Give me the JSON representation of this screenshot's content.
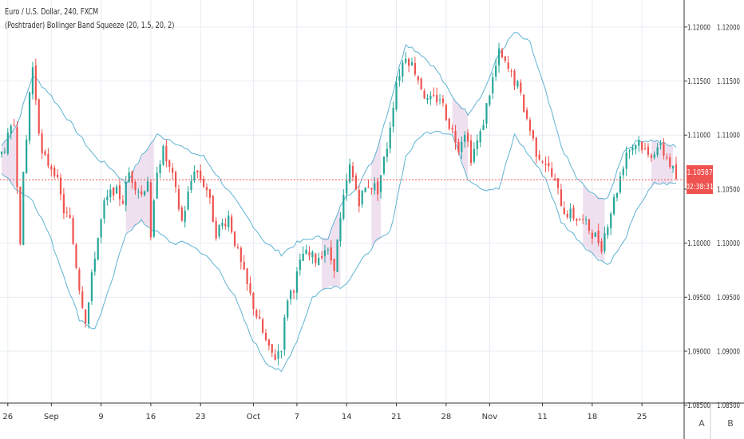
{
  "legend": {
    "symbol": "Euro / U.S. Dollar, 240, FXCM",
    "indicator": "(Poshtrader) Bollinger Band Squeeze (20, 1.5, 20, 2)"
  },
  "price_axis": {
    "labels": [
      "1.12000",
      "1.11500",
      "1.11000",
      "1.10500",
      "1.10000",
      "1.09500",
      "1.09000",
      "1.08500"
    ],
    "current_price": "1.10587",
    "countdown": "02:38:31"
  },
  "time_axis": {
    "labels": [
      "26",
      "Sep",
      "9",
      "16",
      "23",
      "Oct",
      "7",
      "14",
      "21",
      "28",
      "Nov",
      "11",
      "18",
      "25"
    ]
  },
  "buttons": {
    "auto": "A",
    "base": "B"
  },
  "colors": {
    "up": "#26a69a",
    "down": "#ef5350",
    "band": "#5fb3d3",
    "squeeze": "#ead6ea",
    "grid": "#e6ecf2",
    "price_line": "#ef5350"
  },
  "chart_data": {
    "type": "candlestick",
    "title": "Euro / U.S. Dollar, 240, FXCM",
    "indicator": "(Poshtrader) Bollinger Band Squeeze (20, 1.5, 20, 2)",
    "ylim": [
      1.0852,
      1.1225
    ],
    "y_ticks": [
      1.12,
      1.115,
      1.11,
      1.105,
      1.1,
      1.095,
      1.09,
      1.085
    ],
    "x_ticks": [
      "26",
      "Sep",
      "9",
      "16",
      "23",
      "Oct",
      "7",
      "14",
      "21",
      "28",
      "Nov",
      "11",
      "18",
      "25"
    ],
    "last_price": 1.10587,
    "price_path": [
      [
        0,
        1.1083
      ],
      [
        4,
        1.111
      ],
      [
        6,
        1.1005
      ],
      [
        7,
        1.106
      ],
      [
        8,
        1.1095
      ],
      [
        9,
        1.114
      ],
      [
        10,
        1.1162
      ],
      [
        13,
        1.108
      ],
      [
        17,
        1.1068
      ],
      [
        20,
        1.103
      ],
      [
        22,
        1.102
      ],
      [
        25,
        1.096
      ],
      [
        27,
        1.093
      ],
      [
        28,
        1.0945
      ],
      [
        30,
        1.099
      ],
      [
        33,
        1.1035
      ],
      [
        36,
        1.105
      ],
      [
        39,
        1.104
      ],
      [
        41,
        1.1065
      ],
      [
        45,
        1.1045
      ],
      [
        47,
        1.106
      ],
      [
        48,
        1.1
      ],
      [
        50,
        1.107
      ],
      [
        52,
        1.1085
      ],
      [
        55,
        1.106
      ],
      [
        58,
        1.102
      ],
      [
        62,
        1.107
      ],
      [
        66,
        1.105
      ],
      [
        69,
        1.101
      ],
      [
        73,
        1.1025
      ],
      [
        76,
        1.099
      ],
      [
        79,
        1.096
      ],
      [
        83,
        1.0925
      ],
      [
        86,
        1.09
      ],
      [
        88,
        1.0895
      ],
      [
        90,
        1.0905
      ],
      [
        92,
        1.095
      ],
      [
        94,
        1.096
      ],
      [
        97,
        1.099
      ],
      [
        101,
        1.0985
      ],
      [
        104,
        1.0995
      ],
      [
        107,
        1.098
      ],
      [
        110,
        1.104
      ],
      [
        112,
        1.107
      ],
      [
        115,
        1.104
      ],
      [
        118,
        1.1055
      ],
      [
        121,
        1.105
      ],
      [
        124,
        1.109
      ],
      [
        127,
        1.115
      ],
      [
        130,
        1.1175
      ],
      [
        133,
        1.116
      ],
      [
        137,
        1.113
      ],
      [
        141,
        1.1135
      ],
      [
        144,
        1.111
      ],
      [
        147,
        1.109
      ],
      [
        149,
        1.1105
      ],
      [
        151,
        1.108
      ],
      [
        154,
        1.11
      ],
      [
        157,
        1.114
      ],
      [
        160,
        1.1175
      ],
      [
        163,
        1.116
      ],
      [
        166,
        1.1145
      ],
      [
        168,
        1.1125
      ],
      [
        170,
        1.1105
      ],
      [
        172,
        1.1085
      ],
      [
        175,
        1.1075
      ],
      [
        178,
        1.1055
      ],
      [
        181,
        1.103
      ],
      [
        184,
        1.1025
      ],
      [
        187,
        1.102
      ],
      [
        190,
        1.101
      ],
      [
        193,
        1.0998
      ],
      [
        195,
        1.102
      ],
      [
        198,
        1.105
      ],
      [
        201,
        1.1085
      ],
      [
        205,
        1.1095
      ],
      [
        208,
        1.108
      ],
      [
        211,
        1.109
      ],
      [
        214,
        1.108
      ],
      [
        217,
        1.106
      ]
    ],
    "upper_band_path": [
      [
        0,
        1.109
      ],
      [
        5,
        1.111
      ],
      [
        10,
        1.1155
      ],
      [
        15,
        1.114
      ],
      [
        20,
        1.112
      ],
      [
        25,
        1.11
      ],
      [
        30,
        1.108
      ],
      [
        35,
        1.107
      ],
      [
        40,
        1.1055
      ],
      [
        45,
        1.108
      ],
      [
        50,
        1.11
      ],
      [
        55,
        1.1095
      ],
      [
        60,
        1.1085
      ],
      [
        65,
        1.108
      ],
      [
        70,
        1.106
      ],
      [
        75,
        1.104
      ],
      [
        80,
        1.102
      ],
      [
        85,
        1.1
      ],
      [
        90,
        1.099
      ],
      [
        95,
        1.1
      ],
      [
        100,
        1.1005
      ],
      [
        105,
        1.1005
      ],
      [
        110,
        1.104
      ],
      [
        115,
        1.1055
      ],
      [
        120,
        1.108
      ],
      [
        125,
        1.113
      ],
      [
        130,
        1.1185
      ],
      [
        135,
        1.1175
      ],
      [
        140,
        1.116
      ],
      [
        145,
        1.1135
      ],
      [
        150,
        1.112
      ],
      [
        155,
        1.114
      ],
      [
        160,
        1.1175
      ],
      [
        165,
        1.1195
      ],
      [
        170,
        1.1185
      ],
      [
        175,
        1.114
      ],
      [
        180,
        1.109
      ],
      [
        185,
        1.106
      ],
      [
        190,
        1.1045
      ],
      [
        195,
        1.104
      ],
      [
        200,
        1.1085
      ],
      [
        205,
        1.1095
      ],
      [
        210,
        1.1095
      ],
      [
        215,
        1.109
      ]
    ],
    "lower_band_path": [
      [
        0,
        1.1065
      ],
      [
        5,
        1.105
      ],
      [
        10,
        1.104
      ],
      [
        15,
        1.101
      ],
      [
        20,
        1.097
      ],
      [
        25,
        1.093
      ],
      [
        30,
        1.092
      ],
      [
        35,
        1.096
      ],
      [
        40,
        1.101
      ],
      [
        45,
        1.102
      ],
      [
        50,
        1.101
      ],
      [
        55,
        1.1
      ],
      [
        60,
        1.1
      ],
      [
        65,
        1.099
      ],
      [
        70,
        1.0975
      ],
      [
        75,
        1.095
      ],
      [
        80,
        1.0915
      ],
      [
        85,
        1.089
      ],
      [
        90,
        1.088
      ],
      [
        95,
        1.091
      ],
      [
        100,
        1.095
      ],
      [
        105,
        1.096
      ],
      [
        110,
        1.096
      ],
      [
        115,
        1.098
      ],
      [
        120,
        1.1
      ],
      [
        125,
        1.101
      ],
      [
        130,
        1.108
      ],
      [
        135,
        1.11
      ],
      [
        140,
        1.1105
      ],
      [
        145,
        1.11
      ],
      [
        150,
        1.106
      ],
      [
        155,
        1.105
      ],
      [
        160,
        1.105
      ],
      [
        165,
        1.11
      ],
      [
        170,
        1.108
      ],
      [
        175,
        1.106
      ],
      [
        180,
        1.102
      ],
      [
        185,
        1.1005
      ],
      [
        190,
        1.099
      ],
      [
        195,
        1.098
      ],
      [
        200,
        1.1
      ],
      [
        205,
        1.1035
      ],
      [
        210,
        1.1055
      ],
      [
        215,
        1.1055
      ]
    ],
    "squeeze_zones": [
      [
        0,
        5
      ],
      [
        40,
        49
      ],
      [
        103,
        109
      ],
      [
        119,
        122
      ],
      [
        145,
        150
      ],
      [
        187,
        194
      ],
      [
        209,
        216
      ]
    ]
  }
}
